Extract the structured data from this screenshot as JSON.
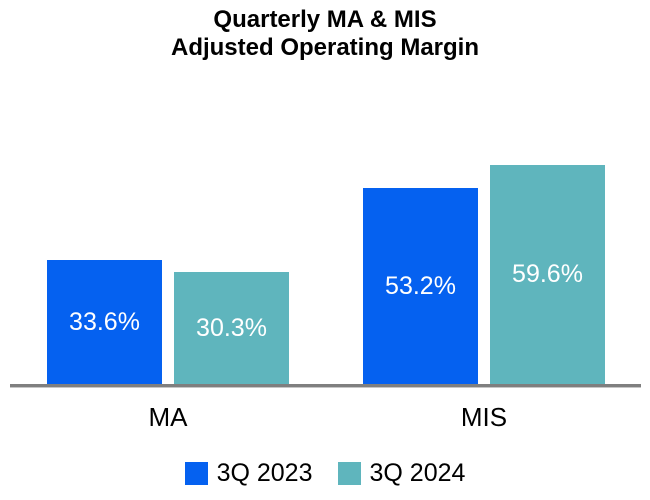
{
  "header": {
    "title_line1": "Quarterly MA & MIS",
    "title_line2": "Adjusted Operating Margin"
  },
  "chart_data": {
    "type": "bar",
    "title": "Quarterly MA & MIS Adjusted Operating Margin",
    "categories": [
      "MA",
      "MIS"
    ],
    "series": [
      {
        "name": "3Q 2023",
        "color": "#0561F0",
        "values": [
          33.6,
          53.2
        ],
        "labels": [
          "33.6%",
          "53.2%"
        ]
      },
      {
        "name": "3Q 2024",
        "color": "#5FB5BD",
        "values": [
          30.3,
          59.6
        ],
        "labels": [
          "30.3%",
          "59.6%"
        ]
      }
    ],
    "xlabel": "",
    "ylabel": "",
    "ylim": [
      0,
      65
    ],
    "grid": false,
    "legend_position": "bottom",
    "bar_label_color": "#FFFFFF",
    "axis_line_color": "#7F7F7F",
    "text_color": "#000000",
    "background_color": "#FFFFFF"
  }
}
